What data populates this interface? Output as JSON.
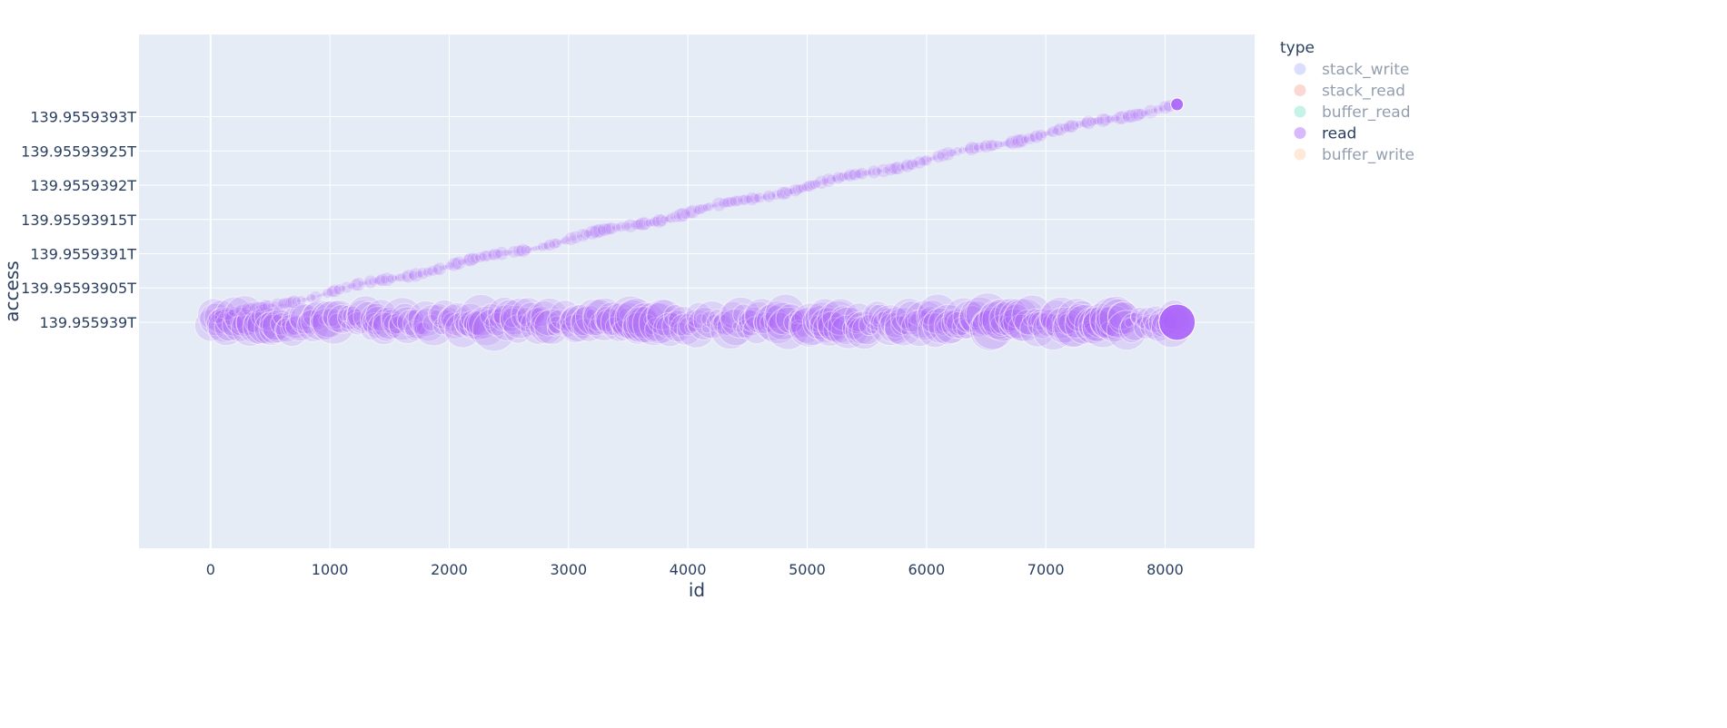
{
  "chart_data": {
    "type": "scatter",
    "xlabel": "id",
    "ylabel": "access",
    "xlim": [
      -600,
      8750
    ],
    "ylim": [
      139.95593867,
      139.95593942
    ],
    "x_ticks": [
      0,
      1000,
      2000,
      3000,
      4000,
      5000,
      6000,
      7000,
      8000
    ],
    "x_tick_labels": [
      "0",
      "1000",
      "2000",
      "3000",
      "4000",
      "5000",
      "6000",
      "7000",
      "8000"
    ],
    "y_ticks": [
      139.955939,
      139.95593905,
      139.9559391,
      139.95593915,
      139.9559392,
      139.95593925,
      139.9559393
    ],
    "y_tick_labels": [
      "139.955939T",
      "139.95593905T",
      "139.9559391T",
      "139.95593915T",
      "139.9559392T",
      "139.95593925T",
      "139.9559393T"
    ],
    "grid": true,
    "legend": {
      "title": "type",
      "placement": "top-right",
      "items": [
        {
          "name": "stack_write",
          "color": "#636efa",
          "visible": false
        },
        {
          "name": "stack_read",
          "color": "#ef553b",
          "visible": false
        },
        {
          "name": "buffer_read",
          "color": "#00cc96",
          "visible": false
        },
        {
          "name": "read",
          "color": "#ab63fa",
          "visible": true
        },
        {
          "name": "buffer_write",
          "color": "#ffa15a",
          "visible": false
        }
      ]
    },
    "series": [
      {
        "name": "read",
        "color": "#ab63fa",
        "marker_opacity": 0.18,
        "diagonal_trend": {
          "x_start": 0,
          "x_end": 8100,
          "y_start": 139.955939005,
          "y_end": 139.955939318,
          "min_marker_size": 4,
          "max_marker_size": 16
        },
        "baseline_cluster": {
          "x_start": 0,
          "x_end": 8100,
          "y_center": 139.955939,
          "y_spread": 1.2e-08,
          "min_marker_size": 10,
          "max_marker_size": 48
        },
        "highlight_points": [
          {
            "x": 8100,
            "y": 139.955939318,
            "size": 14
          },
          {
            "x": 8100,
            "y": 139.955939,
            "size": 40
          }
        ]
      }
    ]
  }
}
